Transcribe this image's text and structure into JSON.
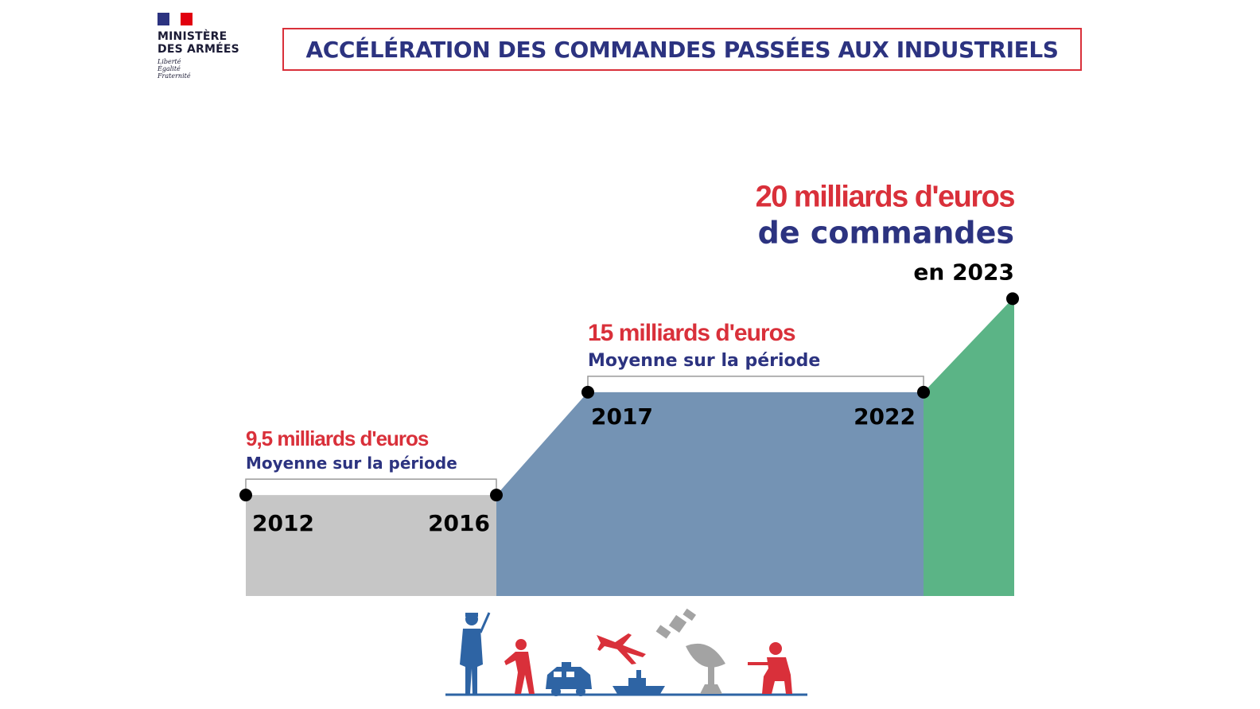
{
  "logo": {
    "line1": "MINISTÈRE",
    "line2": "DES ARMÉES",
    "motto": [
      "Liberté",
      "Égalité",
      "Fraternité"
    ],
    "flag_colors": [
      "#2c3380",
      "#ffffff",
      "#e1000f"
    ]
  },
  "title": "ACCÉLÉRATION DES COMMANDES PASSÉES AUX INDUSTRIELS",
  "colors": {
    "title": "#2c3380",
    "accent_red": "#d9303a",
    "navy": "#2c3380",
    "period_1": "#c6c6c6",
    "period_2": "#7493b4",
    "period_3": "#5bb486",
    "pictogram_blue": "#2e64a4",
    "pictogram_red": "#d9303a",
    "pictogram_grey": "#a3a3a3"
  },
  "chart_data": {
    "type": "area",
    "unit": "milliards d'euros",
    "periods": [
      {
        "start": "2012",
        "end": "2016",
        "value": 9.5,
        "value_label": "9,5 milliards d'euros",
        "note": "Moyenne sur la période",
        "color": "#c6c6c6"
      },
      {
        "start": "2017",
        "end": "2022",
        "value": 15,
        "value_label": "15 milliards d'euros",
        "note": "Moyenne sur la période",
        "color": "#7493b4"
      },
      {
        "start": "2022",
        "end": "2023",
        "value": 20,
        "value_label": "20 milliards d'euros",
        "value_label_line2": "de commandes",
        "value_label_line3": "en 2023",
        "color": "#5bb486"
      }
    ]
  },
  "pictograms": [
    "soldier-icon",
    "runner-icon",
    "armored-vehicle-icon",
    "aircraft-icon",
    "ship-icon",
    "satellite-icon",
    "radar-dish-icon",
    "kneeling-soldier-icon"
  ]
}
